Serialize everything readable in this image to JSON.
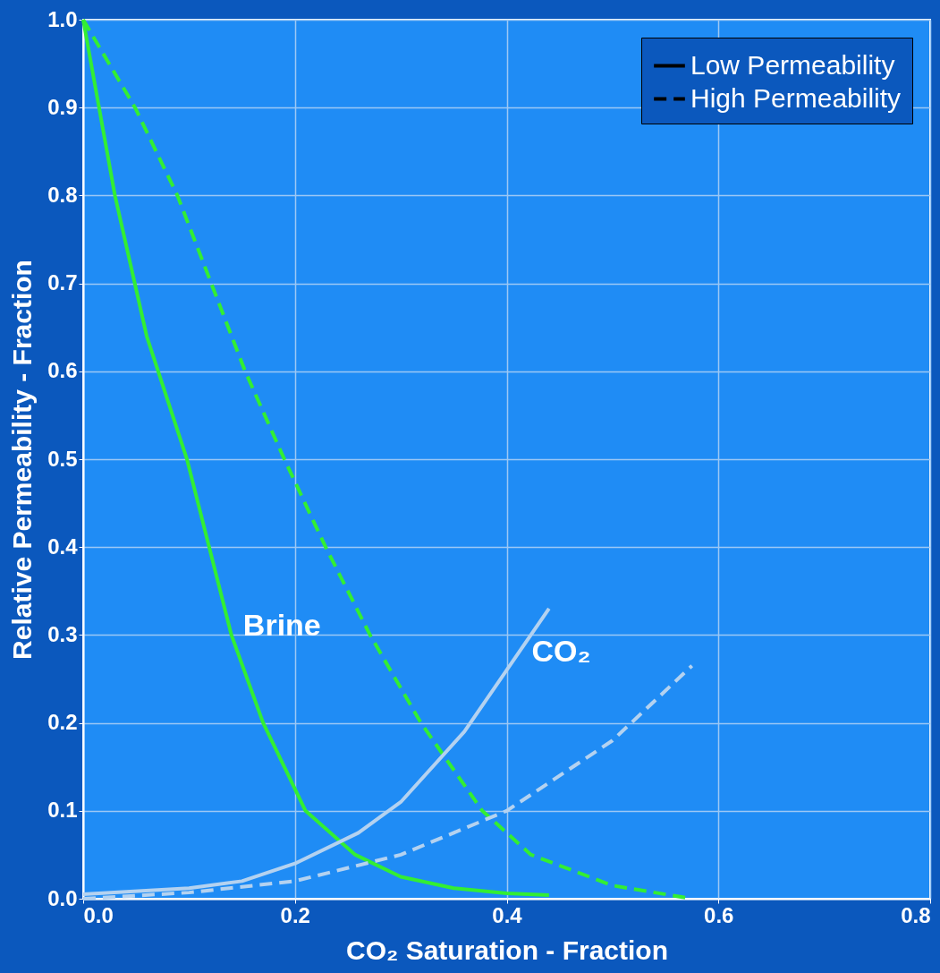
{
  "chart_data": {
    "type": "line",
    "xlabel": "CO₂ Saturation - Fraction",
    "ylabel": "Relative Permeability - Fraction",
    "xlim": [
      0,
      0.8
    ],
    "ylim": [
      0,
      1
    ],
    "xticks": [
      {
        "value": 0,
        "label": "0.0"
      },
      {
        "value": 0.2,
        "label": "0.2"
      },
      {
        "value": 0.4,
        "label": "0.4"
      },
      {
        "value": 0.6,
        "label": "0.6"
      },
      {
        "value": 0.8,
        "label": "0.8"
      }
    ],
    "yticks": [
      {
        "value": 0,
        "label": "0.0"
      },
      {
        "value": 0.1,
        "label": "0.1"
      },
      {
        "value": 0.2,
        "label": "0.2"
      },
      {
        "value": 0.3,
        "label": "0.3"
      },
      {
        "value": 0.4,
        "label": "0.4"
      },
      {
        "value": 0.5,
        "label": "0.5"
      },
      {
        "value": 0.6,
        "label": "0.6"
      },
      {
        "value": 0.7,
        "label": "0.7"
      },
      {
        "value": 0.8,
        "label": "0.8"
      },
      {
        "value": 0.9,
        "label": "0.9"
      },
      {
        "value": 1.0,
        "label": "1.0"
      }
    ],
    "grid": true,
    "legend": "top right",
    "marker": "none",
    "series": [
      {
        "name": "Low Permeability",
        "color": "#33ee33",
        "line_style": "solid",
        "x": [
          0,
          0.03,
          0.06,
          0.098,
          0.14,
          0.17,
          0.21,
          0.257,
          0.3,
          0.35,
          0.4,
          0.44
        ],
        "values": [
          1,
          0.8,
          0.64,
          0.5,
          0.3,
          0.2,
          0.1,
          0.05,
          0.025,
          0.012,
          0.006,
          0.004
        ]
      },
      {
        "name": "High Permeability",
        "color": "#33ee33",
        "line_style": "dashed",
        "x": [
          0,
          0.049,
          0.089,
          0.121,
          0.153,
          0.19,
          0.229,
          0.271,
          0.319,
          0.377,
          0.423,
          0.5,
          0.575
        ],
        "values": [
          1,
          0.9,
          0.8,
          0.7,
          0.6,
          0.5,
          0.4,
          0.3,
          0.2,
          0.1,
          0.05,
          0.015,
          0
        ]
      },
      {
        "color": "#b4d2f0",
        "line_style": "solid",
        "x": [
          0,
          0.1,
          0.15,
          0.2,
          0.26,
          0.3,
          0.36,
          0.4,
          0.44
        ],
        "values": [
          0.005,
          0.012,
          0.02,
          0.04,
          0.075,
          0.11,
          0.19,
          0.26,
          0.33
        ]
      },
      {
        "color": "#b4d2f0",
        "line_style": "dashed",
        "x": [
          0,
          0.1,
          0.2,
          0.3,
          0.4,
          0.5,
          0.575
        ],
        "values": [
          0,
          0.007,
          0.02,
          0.05,
          0.1,
          0.18,
          0.265
        ]
      }
    ],
    "annotations": [
      "Brine",
      "CO₂"
    ]
  }
}
